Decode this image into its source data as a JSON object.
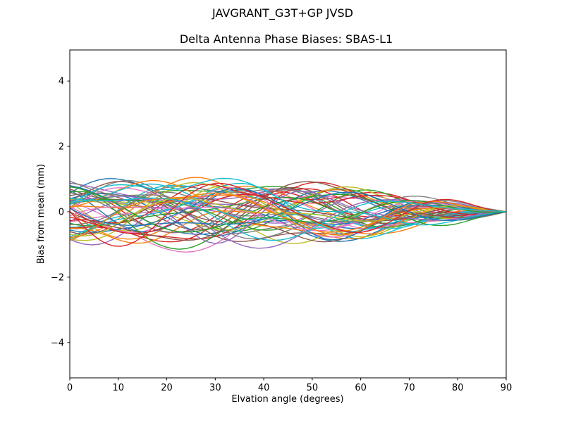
{
  "figure": {
    "suptitle": "JAVGRANT_G3T+GP JVSD",
    "background": "#ffffff"
  },
  "chart_data": {
    "type": "line",
    "suptitle": "JAVGRANT_G3T+GP JVSD",
    "title": "Delta Antenna Phase Biases: SBAS-L1",
    "xlabel": "Elvation angle (degrees)",
    "ylabel": "Bias from mean (mm)",
    "xlim": [
      0,
      90
    ],
    "ylim": [
      -5.08,
      4.95
    ],
    "xticks": [
      0,
      10,
      20,
      30,
      40,
      50,
      60,
      70,
      80,
      90
    ],
    "xtick_labels": [
      "0",
      "10",
      "20",
      "30",
      "40",
      "50",
      "60",
      "70",
      "80",
      "90"
    ],
    "yticks": [
      -4,
      -2,
      0,
      2,
      4
    ],
    "ytick_labels": [
      "−4",
      "−2",
      "0",
      "2",
      "4"
    ],
    "grid": false,
    "legend": null,
    "frame_color": "#000000",
    "background": "#ffffff",
    "palette": [
      "#1f77b4",
      "#ff7f0e",
      "#2ca02c",
      "#d62728",
      "#9467bd",
      "#8c564b",
      "#e377c2",
      "#7f7f7f",
      "#bcbd22",
      "#17becf"
    ],
    "num_series": 55,
    "x_sample_step": 1.5,
    "envelope_x": [
      0,
      10,
      20,
      30,
      40,
      50,
      60,
      70,
      80,
      90
    ],
    "envelope": [
      1.05,
      1.0,
      0.95,
      1.0,
      0.92,
      0.85,
      0.75,
      0.55,
      0.3,
      0
    ],
    "series_format": [
      "palette_index",
      "amp1",
      "freq1_deg",
      "phase1_deg",
      "amp2",
      "freq2_deg",
      "phase2_deg",
      "bias_mm"
    ],
    "series": [
      [
        0,
        0.85,
        4,
        40,
        0.25,
        11,
        10,
        -0.05
      ],
      [
        1,
        0.6,
        6,
        200,
        0.3,
        9,
        150,
        0.05
      ],
      [
        2,
        0.95,
        3.5,
        330,
        0.2,
        12,
        250,
        -0.1
      ],
      [
        3,
        0.45,
        7,
        120,
        0.3,
        10,
        60,
        0.08
      ],
      [
        4,
        0.75,
        5,
        260,
        0.25,
        13,
        190,
        -0.02
      ],
      [
        5,
        0.55,
        8,
        80,
        0.2,
        11,
        300,
        0.1
      ],
      [
        6,
        0.9,
        4.5,
        170,
        0.3,
        9.5,
        40,
        -0.08
      ],
      [
        7,
        0.4,
        6.5,
        300,
        0.25,
        12.5,
        220,
        0.02
      ],
      [
        8,
        0.7,
        5.5,
        20,
        0.3,
        10.5,
        130,
        -0.12
      ],
      [
        9,
        0.5,
        7.5,
        230,
        0.2,
        13.5,
        320,
        0.06
      ],
      [
        0,
        0.65,
        3,
        140,
        0.35,
        8.5,
        80,
        0.0
      ],
      [
        1,
        0.95,
        5.2,
        310,
        0.2,
        11.5,
        170,
        -0.06
      ],
      [
        2,
        0.5,
        6.8,
        60,
        0.3,
        9.8,
        260,
        0.09
      ],
      [
        3,
        0.8,
        4.2,
        210,
        0.25,
        12.2,
        350,
        -0.03
      ],
      [
        4,
        0.45,
        7.8,
        350,
        0.3,
        10.8,
        110,
        0.04
      ],
      [
        5,
        0.85,
        3.8,
        100,
        0.2,
        13.2,
        200,
        -0.1
      ],
      [
        6,
        0.55,
        6.2,
        250,
        0.3,
        9.2,
        30,
        0.07
      ],
      [
        7,
        0.75,
        5.8,
        30,
        0.25,
        11.8,
        290,
        -0.01
      ],
      [
        8,
        0.4,
        8.2,
        180,
        0.3,
        10.2,
        140,
        0.1
      ],
      [
        9,
        0.9,
        4.8,
        320,
        0.2,
        12.8,
        230,
        -0.07
      ],
      [
        0,
        0.5,
        6.4,
        90,
        0.3,
        9.4,
        330,
        0.03
      ],
      [
        1,
        0.7,
        3.6,
        240,
        0.25,
        13.6,
        60,
        -0.09
      ],
      [
        2,
        0.6,
        7.2,
        10,
        0.3,
        10.4,
        150,
        0.05
      ],
      [
        3,
        0.95,
        5.4,
        160,
        0.2,
        11.4,
        240,
        -0.04
      ],
      [
        4,
        0.5,
        6.6,
        290,
        0.3,
        9.6,
        20,
        0.08
      ],
      [
        5,
        0.8,
        4.4,
        50,
        0.25,
        12.4,
        310,
        -0.11
      ],
      [
        6,
        0.45,
        7.4,
        200,
        0.3,
        10.6,
        100,
        0.01
      ],
      [
        7,
        0.85,
        3.4,
        340,
        0.2,
        13.4,
        190,
        -0.05
      ],
      [
        8,
        0.6,
        6.0,
        110,
        0.3,
        9.0,
        280,
        0.09
      ],
      [
        9,
        0.75,
        5.6,
        270,
        0.25,
        11.6,
        10,
        -0.02
      ],
      [
        0,
        0.4,
        8.4,
        130,
        0.3,
        10.0,
        120,
        0.06
      ],
      [
        1,
        0.9,
        4.6,
        20,
        0.2,
        12.6,
        210,
        -0.08
      ],
      [
        2,
        0.55,
        6.9,
        190,
        0.3,
        9.9,
        300,
        0.02
      ],
      [
        3,
        0.7,
        3.9,
        300,
        0.25,
        13.9,
        90,
        0.1
      ],
      [
        4,
        0.95,
        5.1,
        70,
        0.2,
        11.1,
        180,
        -0.06
      ],
      [
        5,
        0.5,
        7.1,
        220,
        0.3,
        10.1,
        270,
        0.04
      ],
      [
        6,
        0.8,
        4.1,
        10,
        0.25,
        12.1,
        0,
        -0.1
      ],
      [
        7,
        0.45,
        6.1,
        150,
        0.3,
        9.1,
        60,
        0.07
      ],
      [
        8,
        0.85,
        5.9,
        280,
        0.2,
        13.1,
        160,
        -0.03
      ],
      [
        9,
        0.6,
        3.3,
        60,
        0.3,
        10.9,
        250,
        0.05
      ],
      [
        0,
        0.75,
        7.6,
        210,
        0.25,
        11.9,
        340,
        -0.07
      ],
      [
        1,
        0.5,
        4.9,
        350,
        0.3,
        9.3,
        130,
        0.01
      ],
      [
        2,
        0.9,
        6.3,
        120,
        0.2,
        12.3,
        20,
        -0.12
      ],
      [
        3,
        0.55,
        3.7,
        250,
        0.3,
        10.3,
        110,
        0.08
      ],
      [
        4,
        0.7,
        7.9,
        40,
        0.25,
        13.7,
        200,
        -0.04
      ],
      [
        5,
        0.95,
        5.3,
        170,
        0.2,
        11.3,
        290,
        0.02
      ],
      [
        6,
        0.5,
        6.7,
        320,
        0.3,
        9.7,
        80,
        -0.09
      ],
      [
        7,
        0.8,
        4.3,
        80,
        0.25,
        12.7,
        170,
        0.06
      ],
      [
        8,
        0.45,
        7.3,
        230,
        0.3,
        10.7,
        260,
        -0.01
      ],
      [
        9,
        0.85,
        3.2,
        10,
        0.2,
        13.3,
        350,
        0.09
      ],
      [
        0,
        0.6,
        5.7,
        140,
        0.3,
        9.5,
        230,
        -0.05
      ],
      [
        1,
        0.7,
        6.6,
        270,
        0.25,
        11.7,
        320,
        0.03
      ],
      [
        2,
        0.45,
        4.7,
        110,
        0.3,
        10.5,
        50,
        -0.08
      ],
      [
        3,
        0.9,
        7.7,
        190,
        0.2,
        12.9,
        140,
        0.04
      ],
      [
        9,
        0.65,
        5.0,
        60,
        0.3,
        9.8,
        210,
        -0.02
      ]
    ]
  }
}
